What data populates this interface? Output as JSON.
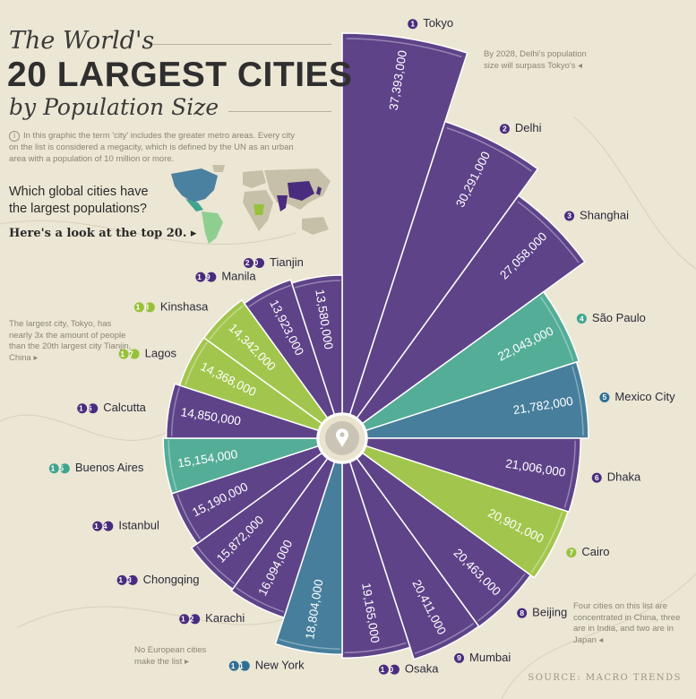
{
  "header": {
    "title_line1": "The World's",
    "title_line2": "20 LARGEST CITIES",
    "title_line3": "by Population Size",
    "intro": "In this graphic the term 'city' includes the greater metro areas. Every city on the list is considered a megacity, which is defined by the UN as an urban area with a population of 10 million or more.",
    "question": "Which global cities have the largest populations?",
    "lookat": "Here's a look at the top 20. ▸"
  },
  "notes": {
    "delhi": "By 2028, Delhi's population size will surpass Tokyo's ◂",
    "tokyo": "The largest city, Tokyo, has nearly 3x the amount of people than the 20th largest city Tianjin, China ▸",
    "china": "Four cities on this list are concentrated in China, three are in India, and two are in Japan ◂",
    "europe": "No European cities make the list ▸"
  },
  "source": "SOURCE:  MACRO TRENDS",
  "colors": {
    "purple": "#4a2c7e",
    "teal": "#3fa58e",
    "blue": "#2f6f94",
    "lime": "#97c13a",
    "map_land": "#c7c0a8",
    "map_america": "#8ecf90",
    "map_asia": "#4a2c7e"
  },
  "chart_data": {
    "type": "bar",
    "layout": "radial",
    "ylim": [
      0,
      37393000
    ],
    "categories": [
      "Tokyo",
      "Delhi",
      "Shanghai",
      "São Paulo",
      "Mexico City",
      "Dhaka",
      "Cairo",
      "Beijing",
      "Mumbai",
      "Osaka",
      "New York",
      "Karachi",
      "Chongqing",
      "Istanbul",
      "Buenos Aires",
      "Calcutta",
      "Lagos",
      "Kinshasa",
      "Manila",
      "Tianjin"
    ],
    "ranks": [
      "1",
      "2",
      "3",
      "4",
      "5",
      "6",
      "7",
      "8",
      "9",
      "10",
      "11",
      "12",
      "13",
      "14",
      "15",
      "16",
      "17",
      "18",
      "19",
      "20"
    ],
    "values": [
      37393000,
      30291000,
      27058000,
      22043000,
      21782000,
      21006000,
      20901000,
      20463000,
      20411000,
      19165000,
      18804000,
      16094000,
      15872000,
      15190000,
      15154000,
      14850000,
      14368000,
      14342000,
      13923000,
      13580000
    ],
    "value_labels": [
      "37,393,000",
      "30,291,000",
      "27,058,000",
      "22,043,000",
      "21,782,000",
      "21,006,000",
      "20,901,000",
      "20,463,000",
      "20,411,000",
      "19,165,000",
      "18,804,000",
      "16,094,000",
      "15,872,000",
      "15,190,000",
      "15,154,000",
      "14,850,000",
      "14,368,000",
      "14,342,000",
      "13,923,000",
      "13,580,000"
    ],
    "regions": [
      "asia",
      "asia",
      "asia",
      "latin-america",
      "north-america",
      "asia",
      "africa",
      "asia",
      "asia",
      "asia",
      "north-america",
      "asia",
      "asia",
      "asia",
      "latin-america",
      "asia",
      "africa",
      "africa",
      "asia",
      "asia"
    ]
  }
}
